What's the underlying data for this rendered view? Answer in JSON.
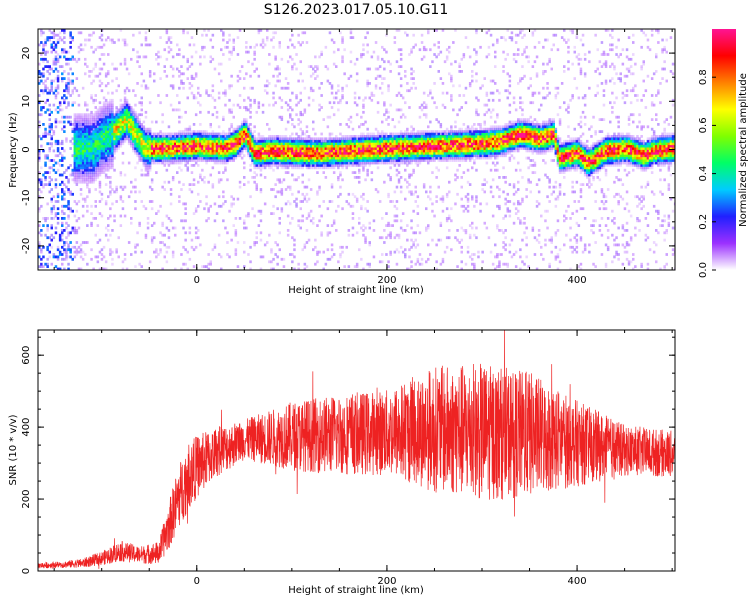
{
  "title": "S126.2023.017.05.10.G11",
  "colors": {
    "snr_line": "#ee2222",
    "axis": "#000000",
    "background": "#ffffff",
    "colormap": [
      "#ffffff",
      "#9b30ff",
      "#2020ff",
      "#00ccff",
      "#00ff66",
      "#80ff00",
      "#ffff00",
      "#ff8000",
      "#ff0000",
      "#ff1493"
    ]
  },
  "chart_data": [
    {
      "type": "heatmap",
      "xlabel": "Height of straight line (km)",
      "ylabel": "Frequency (Hz)",
      "xlim": [
        -167,
        503
      ],
      "ylim": [
        -25,
        25
      ],
      "xticks": [
        0,
        200,
        400
      ],
      "yticks": [
        -20,
        -10,
        0,
        10,
        20
      ],
      "colorbar": {
        "label": "Normalized spectral amplitude",
        "lim": [
          0,
          1
        ],
        "ticks": [
          "0.0",
          "0.2",
          "0.4",
          "0.6",
          "0.8"
        ]
      },
      "ridge": {
        "x": [
          -110,
          -100,
          -90,
          -80,
          -75,
          -65,
          -55,
          -45,
          -30,
          0,
          30,
          40,
          50,
          60,
          80,
          100,
          130,
          160,
          200,
          250,
          300,
          320,
          340,
          360,
          375,
          380,
          400,
          410,
          430,
          450,
          470,
          480,
          503
        ],
        "y": [
          0,
          2,
          3,
          5,
          6,
          3,
          0,
          0,
          0,
          0.5,
          0,
          1,
          3,
          -1,
          -0.5,
          -0.8,
          -1,
          -0.5,
          0,
          0.5,
          1,
          1.5,
          3,
          2,
          3,
          -2,
          -1,
          -3,
          -0.5,
          0,
          -1.5,
          -0.5,
          0
        ]
      }
    },
    {
      "type": "line",
      "xlabel": "Height of straight line (km)",
      "ylabel": "SNR (10 * v/v)",
      "xlim": [
        -167,
        503
      ],
      "ylim": [
        0,
        670
      ],
      "xticks": [
        0,
        200,
        400
      ],
      "yticks": [
        0,
        200,
        400,
        600
      ],
      "series": [
        {
          "envelope": {
            "x": [
              -167,
              -140,
              -120,
              -100,
              -80,
              -60,
              -40,
              -30,
              -20,
              -10,
              0,
              20,
              50,
              100,
              150,
              200,
              250,
              300,
              350,
              400,
              450,
              503
            ],
            "mean": [
              15,
              18,
              22,
              35,
              55,
              45,
              50,
              120,
              200,
              260,
              290,
              330,
              365,
              375,
              380,
              385,
              395,
              385,
              380,
              355,
              335,
              325
            ],
            "amp": [
              5,
              6,
              8,
              12,
              18,
              15,
              20,
              40,
              55,
              60,
              55,
              45,
              35,
              60,
              70,
              75,
              110,
              120,
              110,
              75,
              45,
              40
            ]
          }
        }
      ]
    }
  ]
}
